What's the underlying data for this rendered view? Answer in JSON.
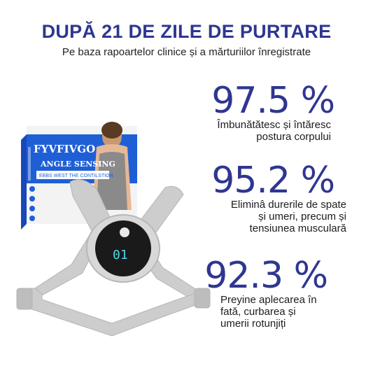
{
  "headline": "DUPĂ 21 DE ZILE DE PURTARE",
  "subtitle": "Pe baza rapoartelor clinice și a mărturiilor înregistrate",
  "stats": [
    {
      "percent": "97.5 %",
      "lines": [
        "Îmbunătătesc și întăresc",
        "postura corpului"
      ]
    },
    {
      "percent": "95.2 %",
      "lines": [
        "Eliminâ durerile de spate",
        "și umeri, precum și",
        "tensiunea musculară"
      ]
    },
    {
      "percent": "92.3 %",
      "lines": [
        "Preyine aplecarea în",
        "fată, curbarea și",
        "umerii rotunjiți"
      ]
    }
  ],
  "product": {
    "brand": "FYVFIVGO",
    "line2": "ANGLE SENSING",
    "line3": "EBBS WEST THE CONTILSTION",
    "display": "01"
  },
  "colors": {
    "brand_blue": "#2f3690",
    "box_blue": "#1f5fd6",
    "strap_gray": "#cfcfcf",
    "device_dark": "#1a1a1a",
    "display_cyan": "#4fd6e8"
  }
}
